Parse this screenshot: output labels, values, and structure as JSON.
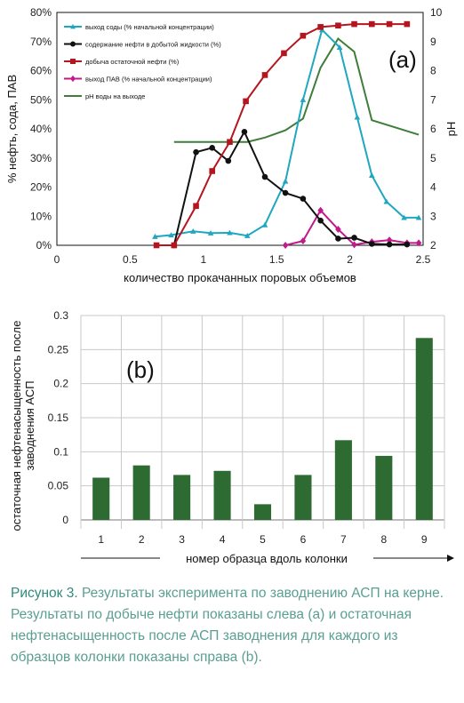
{
  "chart_data": [
    {
      "type": "line",
      "panel_label": "(a)",
      "xlabel": "количество прокачанных поровых объемов",
      "ylabel_left": "% нефть, сода, ПАВ",
      "ylabel_right": "pH",
      "xlim": [
        0,
        2.5
      ],
      "ylim_left": [
        0,
        80
      ],
      "ylim_right": [
        2,
        10
      ],
      "x_ticks": [
        "0",
        "0.5",
        "1",
        "1.5",
        "2",
        "2.5"
      ],
      "y_ticks_left": [
        "0%",
        "10%",
        "20%",
        "30%",
        "40%",
        "50%",
        "60%",
        "70%",
        "80%"
      ],
      "y_ticks_right": [
        "2",
        "3",
        "4",
        "5",
        "6",
        "7",
        "8",
        "9",
        "10"
      ],
      "grid": false,
      "legend_position": "top-left",
      "series": [
        {
          "name": "выход соды (% начальной концентрации)",
          "axis": "left",
          "color": "#1fa7c0",
          "marker": "triangle",
          "x": [
            0.67,
            0.78,
            0.93,
            1.05,
            1.18,
            1.3,
            1.42,
            1.56,
            1.68,
            1.81,
            1.93,
            2.05,
            2.15,
            2.25,
            2.37,
            2.47
          ],
          "y": [
            3,
            3.5,
            4.8,
            4.2,
            4.3,
            3.3,
            7,
            22,
            50,
            74,
            68,
            44,
            24,
            15,
            9.5,
            9.5
          ]
        },
        {
          "name": "содержание нефти в добытой жидкости (%)",
          "axis": "left",
          "color": "#111111",
          "marker": "circle",
          "x": [
            0.8,
            0.95,
            1.06,
            1.17,
            1.28,
            1.42,
            1.56,
            1.68,
            1.8,
            1.92,
            2.03,
            2.15,
            2.27,
            2.39
          ],
          "y": [
            0,
            32,
            33.5,
            29,
            39,
            23.5,
            18,
            16,
            8.5,
            2.3,
            2.6,
            0.5,
            0.3,
            0.3
          ]
        },
        {
          "name": "добыча остаточной нефти (%)",
          "axis": "left",
          "color": "#b5151e",
          "marker": "square",
          "x": [
            0.68,
            0.8,
            0.95,
            1.06,
            1.18,
            1.29,
            1.42,
            1.55,
            1.68,
            1.8,
            1.92,
            2.03,
            2.15,
            2.27,
            2.39
          ],
          "y": [
            0,
            0,
            13.5,
            25.5,
            35.5,
            49.5,
            58.5,
            66,
            72,
            75,
            75.5,
            76,
            76,
            76,
            76
          ]
        },
        {
          "name": "выход ПАВ (% начальной концентрации)",
          "axis": "left",
          "color": "#c11a8a",
          "marker": "diamond",
          "x": [
            1.56,
            1.68,
            1.8,
            1.92,
            2.03,
            2.15,
            2.27,
            2.39,
            2.47
          ],
          "y": [
            0,
            1.5,
            12,
            5.5,
            0.2,
            1.2,
            1.8,
            0.8,
            0.8
          ]
        },
        {
          "name": "pH воды на выходе",
          "axis": "right",
          "color": "#3f7d3a",
          "marker": "none",
          "x": [
            0.8,
            1.3,
            1.42,
            1.56,
            1.68,
            1.8,
            1.92,
            2.03,
            2.15,
            2.47
          ],
          "y": [
            5.55,
            5.55,
            5.7,
            5.95,
            6.35,
            8.1,
            9.1,
            8.65,
            6.3,
            5.8
          ]
        }
      ]
    },
    {
      "type": "bar",
      "panel_label": "(b)",
      "xlabel": "номер образца вдоль колонки",
      "ylabel": "остаточная нефтенасыщенность после заводнения АСП",
      "categories": [
        "1",
        "2",
        "3",
        "4",
        "5",
        "6",
        "7",
        "8",
        "9"
      ],
      "values": [
        0.062,
        0.08,
        0.066,
        0.072,
        0.023,
        0.066,
        0.117,
        0.094,
        0.267
      ],
      "ylim": [
        0,
        0.3
      ],
      "y_ticks": [
        "0",
        "0.05",
        "0.1",
        "0.15",
        "0.2",
        "0.25",
        "0.3"
      ],
      "color": "#2d6b32",
      "grid": true
    }
  ],
  "caption": {
    "title": "Рисунок 3.",
    "text": " Результаты эксперимента по заводнению АСП на керне. Результаты по добыче нефти показаны слева (a) и остаточная нефтенасыщенность после АСП заводнения для каждого из образцов колонки показаны справа (b)."
  }
}
